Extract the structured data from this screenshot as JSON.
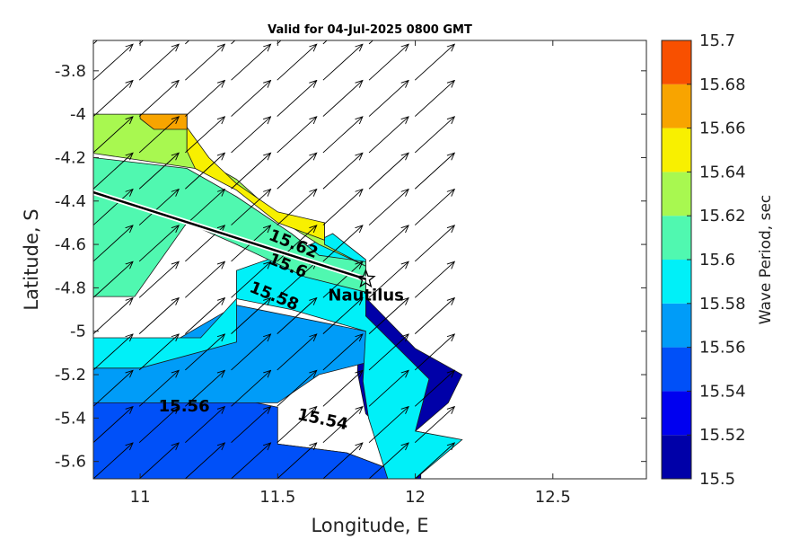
{
  "chart_data": {
    "type": "heatmap",
    "title": "Valid for 04-Jul-2025 0800 GMT",
    "xlabel": "Longitude, E",
    "ylabel": "Latitude, S",
    "colorbar_label": "Wave Period, sec",
    "xlim": [
      10.83,
      12.84
    ],
    "ylim": [
      -5.68,
      -3.66
    ],
    "xticks": [
      11,
      11.5,
      12,
      12.5
    ],
    "xtick_labels": [
      "11",
      "11.5",
      "12",
      "12.5"
    ],
    "yticks": [
      -3.8,
      -4,
      -4.2,
      -4.4,
      -4.6,
      -4.8,
      -5,
      -5.2,
      -5.4,
      -5.6
    ],
    "ytick_labels": [
      "-3.8",
      "-4",
      "-4.2",
      "-4.4",
      "-4.6",
      "-4.8",
      "-5",
      "-5.2",
      "-5.4",
      "-5.6"
    ],
    "colorbar_ticks": [
      "15.5",
      "15.52",
      "15.54",
      "15.56",
      "15.58",
      "15.6",
      "15.62",
      "15.64",
      "15.66",
      "15.68",
      "15.7"
    ],
    "colorbar_colors": [
      "#0000a8",
      "#0000f0",
      "#0050f8",
      "#009cf8",
      "#00f0f8",
      "#50f8b0",
      "#a8f850",
      "#f8f000",
      "#f8a400",
      "#f85000"
    ],
    "levels": [
      {
        "value": 15.5,
        "color": "#0000a8",
        "polygon": [
          [
            10.83,
            -5.68
          ],
          [
            12.02,
            -5.68
          ],
          [
            12.02,
            -5.56
          ],
          [
            11.9,
            -5.48
          ],
          [
            11.82,
            -5.38
          ],
          [
            11.79,
            -5.19
          ],
          [
            11.8,
            -4.82
          ],
          [
            12.0,
            -5.08
          ],
          [
            12.17,
            -5.2
          ],
          [
            12.12,
            -5.33
          ],
          [
            12.0,
            -5.46
          ],
          [
            12.16,
            -5.5
          ],
          [
            12.0,
            -5.68
          ],
          [
            10.83,
            -5.68
          ]
        ]
      },
      {
        "value": 15.52,
        "color": "#0000f0",
        "polygon": [
          [
            10.83,
            -5.68
          ],
          [
            12.0,
            -5.68
          ],
          [
            11.75,
            -5.56
          ],
          [
            11.5,
            -5.52
          ],
          [
            10.83,
            -5.52
          ]
        ]
      },
      {
        "value": 15.54,
        "color": "#0050f8",
        "polygon": [
          [
            10.83,
            -5.68
          ],
          [
            12.0,
            -5.68
          ],
          [
            11.75,
            -5.56
          ],
          [
            11.5,
            -5.52
          ],
          [
            11.5,
            -5.35
          ],
          [
            11.35,
            -5.31
          ],
          [
            10.83,
            -5.31
          ]
        ]
      },
      {
        "value": 15.56,
        "color": "#009cf8",
        "polygon": [
          [
            10.83,
            -5.33
          ],
          [
            11.5,
            -5.33
          ],
          [
            11.65,
            -5.2
          ],
          [
            11.9,
            -5.12
          ],
          [
            11.82,
            -5.0
          ],
          [
            11.35,
            -4.88
          ],
          [
            11.05,
            -5.1
          ],
          [
            10.83,
            -5.17
          ]
        ]
      },
      {
        "value": 15.58,
        "color": "#00f0f8",
        "polygon": [
          [
            10.83,
            -5.17
          ],
          [
            11.0,
            -5.17
          ],
          [
            11.35,
            -5.05
          ],
          [
            11.35,
            -4.72
          ],
          [
            11.62,
            -4.6
          ],
          [
            11.7,
            -4.55
          ],
          [
            11.82,
            -4.67
          ],
          [
            11.82,
            -4.93
          ],
          [
            12.05,
            -5.22
          ],
          [
            12.0,
            -5.46
          ],
          [
            12.17,
            -5.5
          ],
          [
            12.0,
            -5.68
          ],
          [
            11.9,
            -5.68
          ],
          [
            11.83,
            -5.4
          ],
          [
            11.81,
            -5.23
          ],
          [
            11.82,
            -5.0
          ],
          [
            11.55,
            -4.9
          ],
          [
            11.35,
            -4.85
          ],
          [
            11.22,
            -5.03
          ],
          [
            10.83,
            -5.03
          ],
          [
            10.83,
            -4.84
          ],
          [
            10.83,
            -4.84
          ]
        ]
      },
      {
        "value": 15.6,
        "color": "#50f8b0",
        "polygon": [
          [
            10.83,
            -4.2
          ],
          [
            11.17,
            -4.25
          ],
          [
            11.35,
            -4.38
          ],
          [
            11.55,
            -4.55
          ],
          [
            11.65,
            -4.65
          ],
          [
            11.82,
            -4.68
          ],
          [
            11.82,
            -4.82
          ],
          [
            11.6,
            -4.75
          ],
          [
            11.35,
            -4.6
          ],
          [
            11.17,
            -4.5
          ],
          [
            10.98,
            -4.84
          ],
          [
            10.83,
            -4.84
          ]
        ]
      },
      {
        "value": 15.62,
        "color": "#a8f850",
        "polygon": [
          [
            10.83,
            -4.0
          ],
          [
            11.17,
            -4.0
          ],
          [
            11.17,
            -4.17
          ],
          [
            11.35,
            -4.3
          ],
          [
            11.5,
            -4.47
          ],
          [
            11.67,
            -4.5
          ],
          [
            11.67,
            -4.6
          ],
          [
            11.82,
            -4.7
          ],
          [
            11.65,
            -4.6
          ],
          [
            11.5,
            -4.48
          ],
          [
            11.35,
            -4.34
          ],
          [
            11.2,
            -4.25
          ],
          [
            10.83,
            -4.18
          ]
        ]
      },
      {
        "value": 15.64,
        "color": "#f8f000",
        "polygon": [
          [
            11.17,
            -4.0
          ],
          [
            11.17,
            -4.06
          ],
          [
            11.25,
            -4.2
          ],
          [
            11.35,
            -4.32
          ],
          [
            11.5,
            -4.45
          ],
          [
            11.67,
            -4.5
          ],
          [
            11.67,
            -4.58
          ],
          [
            11.5,
            -4.5
          ],
          [
            11.35,
            -4.35
          ],
          [
            11.2,
            -4.25
          ],
          [
            11.17,
            -4.17
          ]
        ]
      },
      {
        "value": 15.66,
        "color": "#f8a400",
        "polygon": [
          [
            11.0,
            -4.0
          ],
          [
            11.17,
            -4.0
          ],
          [
            11.17,
            -4.07
          ],
          [
            11.05,
            -4.07
          ],
          [
            11.0,
            -4.02
          ]
        ]
      }
    ],
    "contour_labels": [
      {
        "text": "15.62",
        "lon": 11.55,
        "lat": -4.62,
        "angle": 22
      },
      {
        "text": "15.6",
        "lon": 11.53,
        "lat": -4.72,
        "angle": 22
      },
      {
        "text": "15.58",
        "lon": 11.48,
        "lat": -4.86,
        "angle": 22
      },
      {
        "text": "15.56",
        "lon": 11.16,
        "lat": -5.37,
        "angle": 0
      },
      {
        "text": "15.54",
        "lon": 11.66,
        "lat": -5.43,
        "angle": 12
      }
    ],
    "track": {
      "lon": [
        10.83,
        11.82
      ],
      "lat": [
        -4.36,
        -4.76
      ]
    },
    "marker": {
      "name": "Nautilus",
      "lon": 11.82,
      "lat": -4.76
    }
  }
}
